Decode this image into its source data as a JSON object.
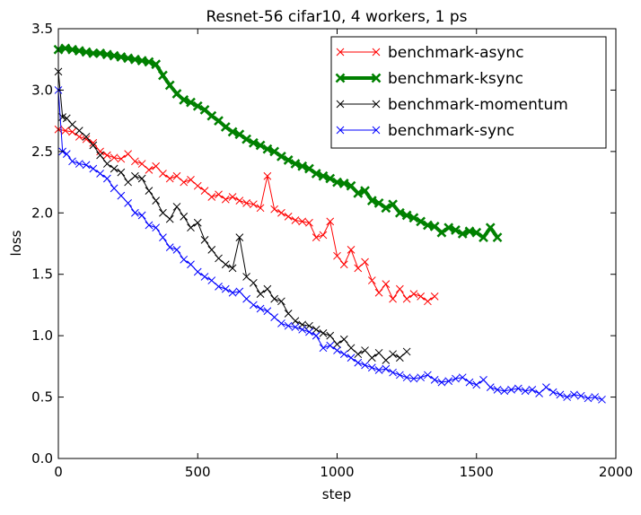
{
  "chart_data": {
    "type": "line",
    "title": "Resnet-56 cifar10, 4 workers, 1 ps",
    "xlabel": "step",
    "ylabel": "loss",
    "xlim": [
      0,
      2000
    ],
    "ylim": [
      0.0,
      3.5
    ],
    "xticks": [
      0,
      500,
      1000,
      1500,
      2000
    ],
    "yticks": [
      0.0,
      0.5,
      1.0,
      1.5,
      2.0,
      2.5,
      3.0,
      3.5
    ],
    "grid": false,
    "legend_position": "top-right",
    "series": [
      {
        "name": "benchmark-async",
        "color": "#ff0000",
        "marker": "x",
        "linewidth": 1,
        "x": [
          0,
          25,
          50,
          75,
          100,
          125,
          150,
          175,
          200,
          225,
          250,
          275,
          300,
          325,
          350,
          375,
          400,
          425,
          450,
          475,
          500,
          525,
          550,
          575,
          600,
          625,
          650,
          675,
          700,
          725,
          750,
          775,
          800,
          825,
          850,
          875,
          900,
          925,
          950,
          975,
          1000,
          1025,
          1050,
          1075,
          1100,
          1125,
          1150,
          1175,
          1200,
          1225,
          1250,
          1275,
          1300,
          1325,
          1350
        ],
        "y": [
          2.68,
          2.67,
          2.66,
          2.62,
          2.6,
          2.57,
          2.5,
          2.47,
          2.45,
          2.44,
          2.48,
          2.42,
          2.4,
          2.35,
          2.38,
          2.32,
          2.28,
          2.3,
          2.25,
          2.27,
          2.22,
          2.18,
          2.13,
          2.15,
          2.11,
          2.13,
          2.1,
          2.08,
          2.07,
          2.04,
          2.3,
          2.03,
          2.0,
          1.97,
          1.94,
          1.93,
          1.92,
          1.8,
          1.82,
          1.93,
          1.65,
          1.58,
          1.7,
          1.55,
          1.6,
          1.45,
          1.35,
          1.42,
          1.3,
          1.38,
          1.3,
          1.34,
          1.32,
          1.28,
          1.32
        ]
      },
      {
        "name": "benchmark-ksync",
        "color": "#008000",
        "marker": "x",
        "linewidth": 4,
        "x": [
          0,
          25,
          50,
          75,
          100,
          125,
          150,
          175,
          200,
          225,
          250,
          275,
          300,
          325,
          350,
          375,
          400,
          425,
          450,
          475,
          500,
          525,
          550,
          575,
          600,
          625,
          650,
          675,
          700,
          725,
          750,
          775,
          800,
          825,
          850,
          875,
          900,
          925,
          950,
          975,
          1000,
          1025,
          1050,
          1075,
          1100,
          1125,
          1150,
          1175,
          1200,
          1225,
          1250,
          1275,
          1300,
          1325,
          1350,
          1375,
          1400,
          1425,
          1450,
          1475,
          1500,
          1525,
          1550,
          1575
        ],
        "y": [
          3.33,
          3.34,
          3.33,
          3.32,
          3.31,
          3.3,
          3.3,
          3.29,
          3.28,
          3.27,
          3.26,
          3.25,
          3.24,
          3.23,
          3.21,
          3.12,
          3.04,
          2.97,
          2.92,
          2.9,
          2.87,
          2.84,
          2.79,
          2.75,
          2.7,
          2.66,
          2.64,
          2.6,
          2.57,
          2.55,
          2.52,
          2.5,
          2.46,
          2.43,
          2.4,
          2.38,
          2.36,
          2.32,
          2.3,
          2.28,
          2.25,
          2.24,
          2.22,
          2.16,
          2.18,
          2.1,
          2.08,
          2.04,
          2.07,
          2.0,
          1.98,
          1.96,
          1.93,
          1.9,
          1.89,
          1.84,
          1.88,
          1.86,
          1.83,
          1.85,
          1.84,
          1.8,
          1.88,
          1.8
        ]
      },
      {
        "name": "benchmark-momentum",
        "color": "#000000",
        "marker": "x",
        "linewidth": 1,
        "x": [
          0,
          15,
          30,
          50,
          75,
          100,
          125,
          150,
          175,
          200,
          225,
          250,
          275,
          300,
          325,
          350,
          375,
          400,
          425,
          450,
          475,
          500,
          525,
          550,
          575,
          600,
          625,
          650,
          675,
          700,
          725,
          750,
          775,
          800,
          825,
          850,
          875,
          900,
          925,
          950,
          975,
          1000,
          1025,
          1050,
          1075,
          1100,
          1125,
          1150,
          1175,
          1200,
          1225,
          1250
        ],
        "y": [
          3.15,
          2.78,
          2.77,
          2.72,
          2.67,
          2.62,
          2.55,
          2.47,
          2.4,
          2.36,
          2.33,
          2.25,
          2.3,
          2.28,
          2.18,
          2.1,
          2.0,
          1.95,
          2.05,
          1.97,
          1.88,
          1.92,
          1.78,
          1.7,
          1.63,
          1.58,
          1.55,
          1.8,
          1.48,
          1.43,
          1.34,
          1.38,
          1.3,
          1.28,
          1.18,
          1.12,
          1.09,
          1.08,
          1.05,
          1.02,
          1.0,
          0.93,
          0.97,
          0.9,
          0.85,
          0.88,
          0.82,
          0.86,
          0.8,
          0.85,
          0.82,
          0.87
        ]
      },
      {
        "name": "benchmark-sync",
        "color": "#0000ff",
        "marker": "x",
        "linewidth": 1,
        "x": [
          0,
          15,
          30,
          50,
          75,
          100,
          125,
          150,
          175,
          200,
          225,
          250,
          275,
          300,
          325,
          350,
          375,
          400,
          425,
          450,
          475,
          500,
          525,
          550,
          575,
          600,
          625,
          650,
          675,
          700,
          725,
          750,
          775,
          800,
          825,
          850,
          875,
          900,
          925,
          950,
          975,
          1000,
          1025,
          1050,
          1075,
          1100,
          1125,
          1150,
          1175,
          1200,
          1225,
          1250,
          1275,
          1300,
          1325,
          1350,
          1375,
          1400,
          1425,
          1450,
          1475,
          1500,
          1525,
          1550,
          1575,
          1600,
          1625,
          1650,
          1675,
          1700,
          1725,
          1750,
          1775,
          1800,
          1825,
          1850,
          1875,
          1900,
          1925,
          1950
        ],
        "y": [
          3.0,
          2.5,
          2.48,
          2.42,
          2.4,
          2.39,
          2.36,
          2.32,
          2.28,
          2.2,
          2.14,
          2.08,
          2.0,
          1.98,
          1.9,
          1.88,
          1.8,
          1.72,
          1.7,
          1.62,
          1.58,
          1.52,
          1.48,
          1.45,
          1.4,
          1.38,
          1.35,
          1.36,
          1.3,
          1.25,
          1.22,
          1.2,
          1.15,
          1.1,
          1.08,
          1.07,
          1.05,
          1.03,
          1.0,
          0.9,
          0.92,
          0.88,
          0.85,
          0.82,
          0.78,
          0.76,
          0.74,
          0.72,
          0.73,
          0.7,
          0.68,
          0.66,
          0.65,
          0.66,
          0.68,
          0.64,
          0.62,
          0.63,
          0.65,
          0.66,
          0.62,
          0.6,
          0.64,
          0.58,
          0.56,
          0.55,
          0.56,
          0.57,
          0.55,
          0.56,
          0.53,
          0.58,
          0.54,
          0.52,
          0.5,
          0.52,
          0.51,
          0.49,
          0.5,
          0.48
        ]
      }
    ]
  }
}
